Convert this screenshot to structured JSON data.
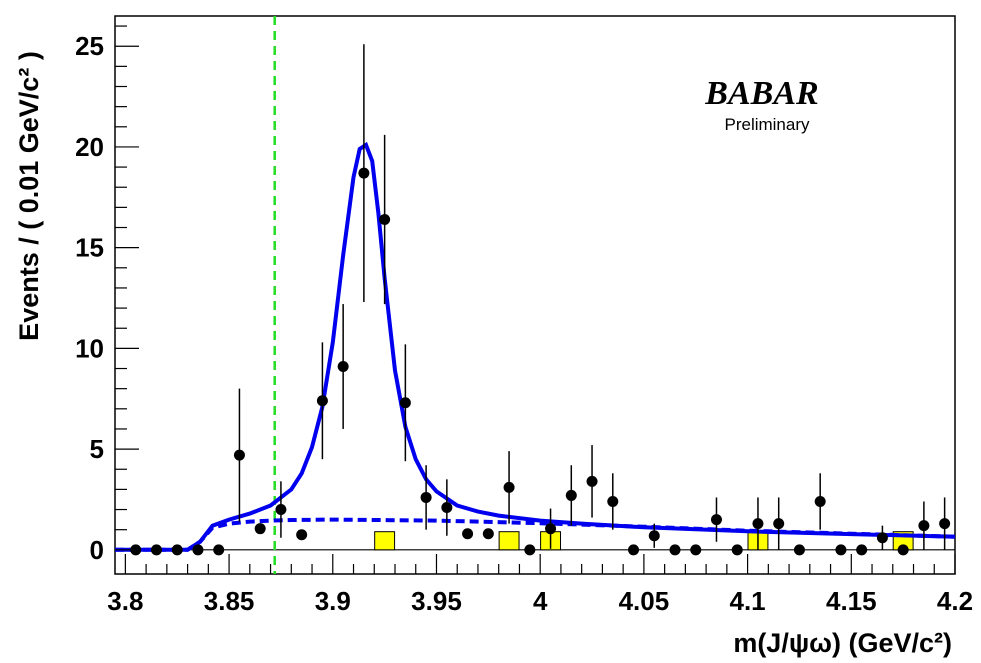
{
  "chart_data": {
    "type": "scatter",
    "xlabel": "m(J/ψω) (GeV/c²)",
    "ylabel": "Events / ( 0.01 GeV/c² )",
    "xlim": [
      3.795,
      4.2
    ],
    "ylim": [
      -1.2,
      26.5
    ],
    "x_ticks": [
      3.8,
      3.85,
      3.9,
      3.95,
      4.0,
      4.05,
      4.1,
      4.15,
      4.2
    ],
    "x_tick_labels": [
      "3.8",
      "3.85",
      "3.9",
      "3.95",
      "4",
      "4.05",
      "4.1",
      "4.15",
      "4.2"
    ],
    "y_ticks": [
      0,
      5,
      10,
      15,
      20,
      25
    ],
    "y_tick_labels": [
      "0",
      "5",
      "10",
      "15",
      "20",
      "25"
    ],
    "threshold_line_x": 3.872,
    "logo": {
      "main": "BABAR",
      "sub": "Preliminary"
    },
    "data_points": [
      {
        "x": 3.805,
        "y": 0,
        "err": 0
      },
      {
        "x": 3.815,
        "y": 0,
        "err": 0
      },
      {
        "x": 3.825,
        "y": 0,
        "err": 0
      },
      {
        "x": 3.835,
        "y": 0,
        "err": 0
      },
      {
        "x": 3.845,
        "y": 0,
        "err": 0
      },
      {
        "x": 3.855,
        "y": 4.7,
        "err": 3.3
      },
      {
        "x": 3.865,
        "y": 1.05,
        "err": 0
      },
      {
        "x": 3.875,
        "y": 2.0,
        "err": 1.4
      },
      {
        "x": 3.885,
        "y": 0.75,
        "err": 0
      },
      {
        "x": 3.895,
        "y": 7.4,
        "err": 2.9
      },
      {
        "x": 3.905,
        "y": 9.1,
        "err": 3.1
      },
      {
        "x": 3.915,
        "y": 18.7,
        "err": 6.4
      },
      {
        "x": 3.925,
        "y": 16.4,
        "err": 4.2
      },
      {
        "x": 3.935,
        "y": 7.3,
        "err": 2.9
      },
      {
        "x": 3.945,
        "y": 2.6,
        "err": 1.6
      },
      {
        "x": 3.955,
        "y": 2.1,
        "err": 1.4
      },
      {
        "x": 3.965,
        "y": 0.8,
        "err": 0
      },
      {
        "x": 3.975,
        "y": 0.8,
        "err": 0
      },
      {
        "x": 3.985,
        "y": 3.1,
        "err": 1.8
      },
      {
        "x": 3.995,
        "y": 0,
        "err": 0
      },
      {
        "x": 4.005,
        "y": 1.05,
        "err": 1.0
      },
      {
        "x": 4.015,
        "y": 2.7,
        "err": 1.5
      },
      {
        "x": 4.025,
        "y": 3.4,
        "err": 1.8
      },
      {
        "x": 4.035,
        "y": 2.4,
        "err": 1.4
      },
      {
        "x": 4.045,
        "y": 0,
        "err": 0
      },
      {
        "x": 4.055,
        "y": 0.7,
        "err": 0.6
      },
      {
        "x": 4.065,
        "y": 0,
        "err": 0
      },
      {
        "x": 4.075,
        "y": 0,
        "err": 0
      },
      {
        "x": 4.085,
        "y": 1.5,
        "err": 1.1
      },
      {
        "x": 4.095,
        "y": 0,
        "err": 0
      },
      {
        "x": 4.105,
        "y": 1.3,
        "err": 1.3
      },
      {
        "x": 4.115,
        "y": 1.3,
        "err": 1.3
      },
      {
        "x": 4.125,
        "y": 0,
        "err": 0
      },
      {
        "x": 4.135,
        "y": 2.4,
        "err": 1.4
      },
      {
        "x": 4.145,
        "y": 0,
        "err": 0
      },
      {
        "x": 4.155,
        "y": 0,
        "err": 0
      },
      {
        "x": 4.165,
        "y": 0.6,
        "err": 0.6
      },
      {
        "x": 4.175,
        "y": 0,
        "err": 0
      },
      {
        "x": 4.185,
        "y": 1.2,
        "err": 1.2
      },
      {
        "x": 4.195,
        "y": 1.3,
        "err": 1.3
      }
    ],
    "background_boxes": [
      {
        "x": 3.925,
        "y": 0.9
      },
      {
        "x": 3.985,
        "y": 0.9
      },
      {
        "x": 4.005,
        "y": 0.9
      },
      {
        "x": 4.105,
        "y": 0.9
      },
      {
        "x": 4.175,
        "y": 0.9
      }
    ],
    "total_fit": {
      "x": [
        3.795,
        3.83,
        3.836,
        3.842,
        3.85,
        3.86,
        3.87,
        3.88,
        3.885,
        3.89,
        3.895,
        3.9,
        3.905,
        3.91,
        3.913,
        3.916,
        3.919,
        3.922,
        3.925,
        3.93,
        3.935,
        3.94,
        3.945,
        3.95,
        3.96,
        3.97,
        3.98,
        4.0,
        4.02,
        4.05,
        4.1,
        4.15,
        4.2
      ],
      "y": [
        0,
        0,
        0.4,
        1.2,
        1.5,
        1.8,
        2.2,
        3.0,
        3.8,
        5.1,
        7.1,
        10.3,
        14.6,
        18.5,
        19.9,
        20.1,
        19.3,
        16.7,
        13.5,
        8.9,
        6.1,
        4.5,
        3.5,
        2.9,
        2.2,
        1.9,
        1.7,
        1.45,
        1.3,
        1.12,
        0.92,
        0.78,
        0.65
      ]
    },
    "background_fit": {
      "x": [
        3.795,
        3.83,
        3.836,
        3.842,
        3.85,
        3.86,
        3.87,
        3.88,
        3.9,
        3.95,
        4.0,
        4.05,
        4.1,
        4.15,
        4.2
      ],
      "y": [
        0,
        0,
        0.4,
        1.1,
        1.3,
        1.4,
        1.45,
        1.48,
        1.5,
        1.45,
        1.32,
        1.15,
        0.95,
        0.8,
        0.65
      ]
    }
  }
}
